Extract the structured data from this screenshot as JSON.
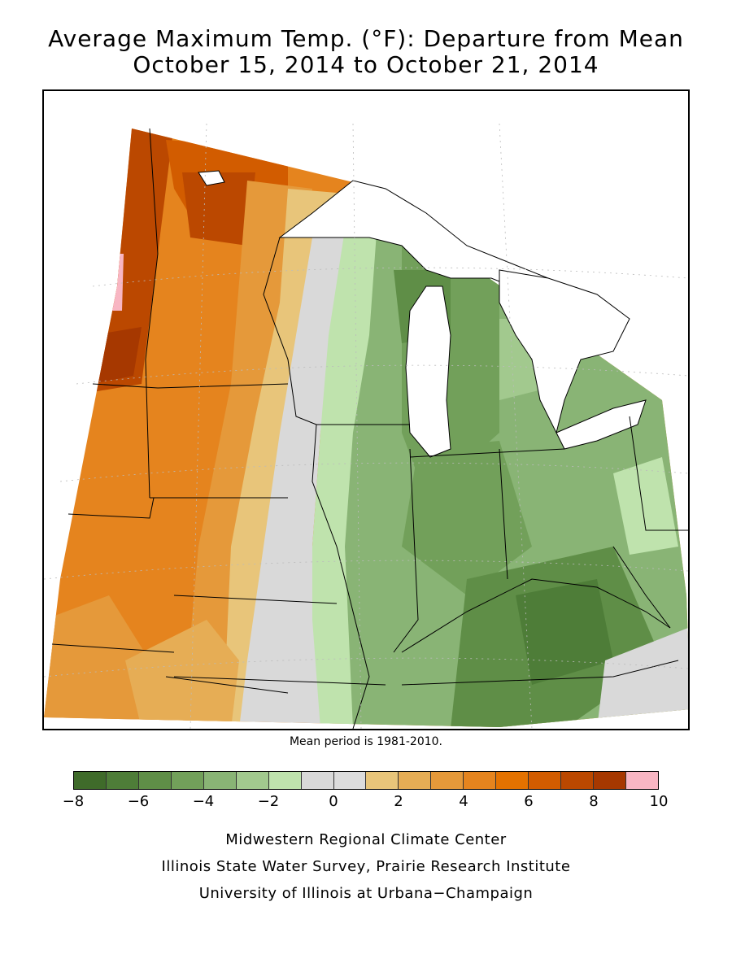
{
  "title_line1": "Average Maximum Temp. (°F): Departure from Mean",
  "title_line2": "October 15, 2014 to October 21, 2014",
  "mean_period_note": "Mean period is 1981-2010.",
  "legend": {
    "colors": [
      "#3f6b2a",
      "#4e7d38",
      "#5f8e47",
      "#72a05a",
      "#89b475",
      "#a2c98e",
      "#bfe3ad",
      "#d9d9d9",
      "#dcdcdc",
      "#e8c57a",
      "#e6ad55",
      "#e5993a",
      "#e5841e",
      "#e47200",
      "#d25c00",
      "#bb4800",
      "#a63800",
      "#f8b6c3"
    ],
    "ticks": [
      "−8",
      "−6",
      "−4",
      "−2",
      "0",
      "2",
      "4",
      "6",
      "8",
      "10"
    ]
  },
  "credits": {
    "line1": "Midwestern Regional Climate Center",
    "line2": "Illinois State Water Survey, Prairie Research Institute",
    "line3": "University of Illinois at Urbana−Champaign"
  }
}
